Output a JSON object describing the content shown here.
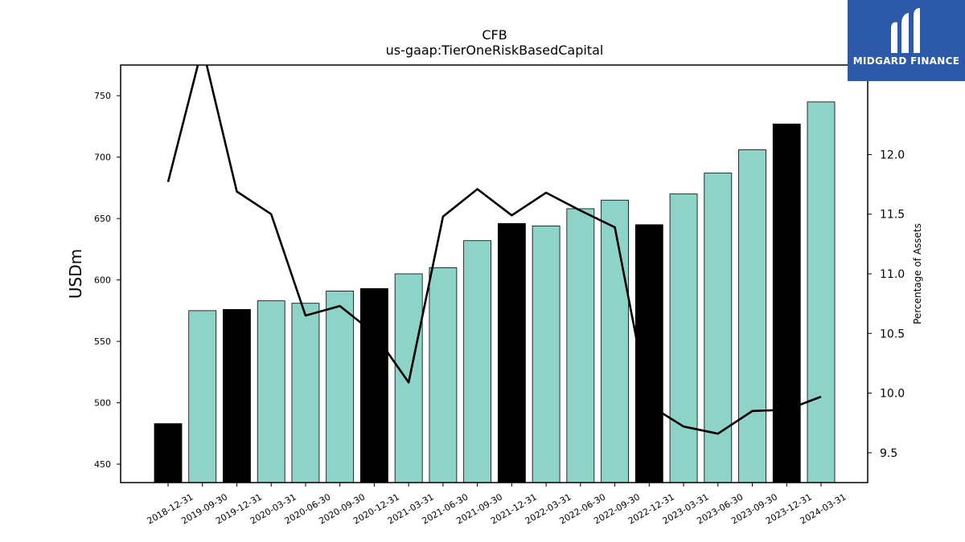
{
  "chart_data": {
    "type": "bar+line",
    "title": "CFB",
    "subtitle": "us-gaap:TierOneRiskBasedCapital",
    "ylabel": "USDm",
    "y2label": "Percentage of Assets",
    "ylim": [
      435,
      775
    ],
    "y2lim": [
      9.25,
      12.75
    ],
    "yticks": [
      450,
      500,
      550,
      600,
      650,
      700,
      750
    ],
    "y2ticks": [
      9.5,
      10.0,
      10.5,
      11.0,
      11.5,
      12.0
    ],
    "categories": [
      "2018-12-31",
      "2019-09-30",
      "2019-12-31",
      "2020-03-31",
      "2020-06-30",
      "2020-09-30",
      "2020-12-31",
      "2021-03-31",
      "2021-06-30",
      "2021-09-30",
      "2021-12-31",
      "2022-03-31",
      "2022-06-30",
      "2022-09-30",
      "2022-12-31",
      "2023-03-31",
      "2023-06-30",
      "2023-09-30",
      "2023-12-31",
      "2024-03-31"
    ],
    "bars": [
      483,
      575,
      576,
      583,
      581,
      591,
      593,
      605,
      610,
      632,
      646,
      644,
      658,
      665,
      645,
      670,
      687,
      706,
      727,
      745
    ],
    "bar_highlight": [
      true,
      false,
      true,
      false,
      false,
      false,
      true,
      false,
      false,
      false,
      true,
      false,
      false,
      false,
      true,
      false,
      false,
      false,
      true,
      false
    ],
    "line": [
      11.77,
      12.9,
      11.69,
      11.5,
      10.65,
      10.73,
      10.5,
      10.09,
      11.48,
      11.71,
      11.49,
      11.68,
      11.53,
      11.39,
      9.9,
      9.72,
      9.66,
      9.85,
      9.86,
      9.97
    ],
    "colors": {
      "bar": "#8dd3c7",
      "bar_highlight": "#000000",
      "line": "#000000"
    },
    "grid": false
  },
  "logo": {
    "text": "MIDGARD FINANCE",
    "color": "#2c5aa8"
  }
}
